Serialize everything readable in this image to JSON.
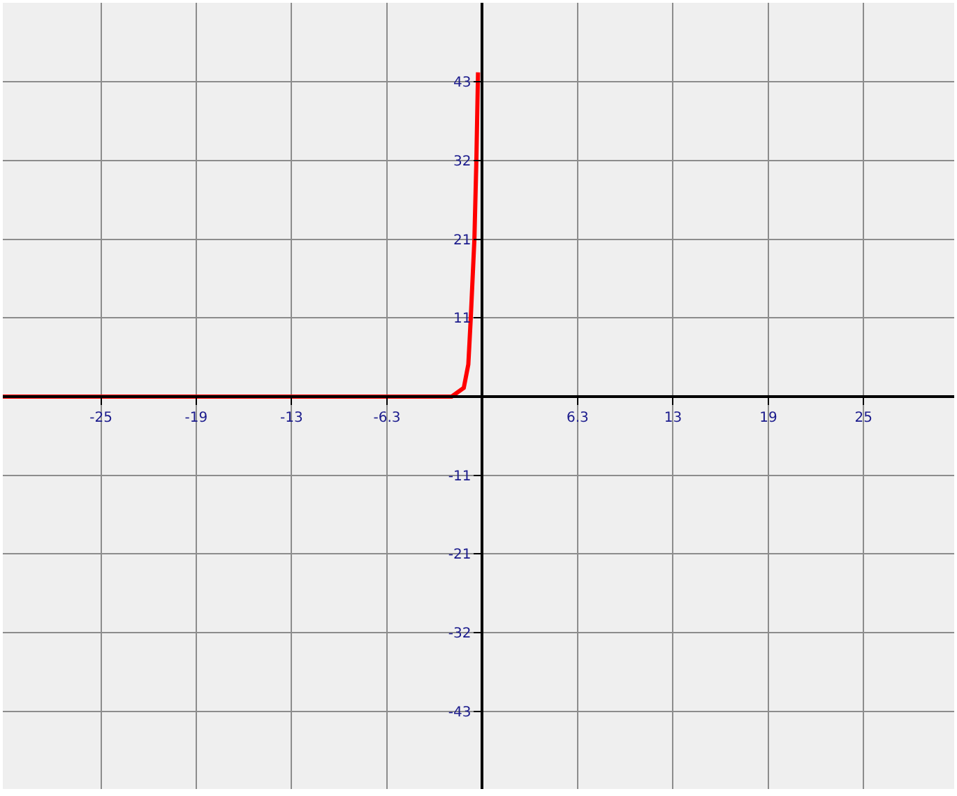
{
  "chart_data": {
    "type": "line",
    "x": [
      -31.6,
      -2.02,
      -1.22,
      -0.92,
      -0.76,
      -0.52,
      -0.39,
      -0.28
    ],
    "series": [
      {
        "color": "#ff0000",
        "values": [
          0,
          0,
          1.2,
          4.4,
          10.7,
          21.5,
          32.3,
          44.3
        ]
      }
    ],
    "xlim": [
      -31.6,
      31.1
    ],
    "ylim": [
      -53.6,
      53.8
    ],
    "xticks": [
      {
        "value": -25.13,
        "label": "-25"
      },
      {
        "value": -18.85,
        "label": "-19"
      },
      {
        "value": -12.57,
        "label": "-13"
      },
      {
        "value": -6.28,
        "label": "-6.3"
      },
      {
        "value": 6.28,
        "label": "6.3"
      },
      {
        "value": 12.57,
        "label": "13"
      },
      {
        "value": 18.85,
        "label": "19"
      },
      {
        "value": 25.13,
        "label": "25"
      }
    ],
    "yticks": [
      {
        "value": -43,
        "label": "-43"
      },
      {
        "value": -32.25,
        "label": "-32"
      },
      {
        "value": -21.5,
        "label": "-21"
      },
      {
        "value": -10.75,
        "label": "-11"
      },
      {
        "value": 10.75,
        "label": "11"
      },
      {
        "value": 21.5,
        "label": "21"
      },
      {
        "value": 32.25,
        "label": "32"
      },
      {
        "value": 43,
        "label": "43"
      }
    ],
    "grid": true,
    "marker": "none",
    "line_style": "solid"
  }
}
